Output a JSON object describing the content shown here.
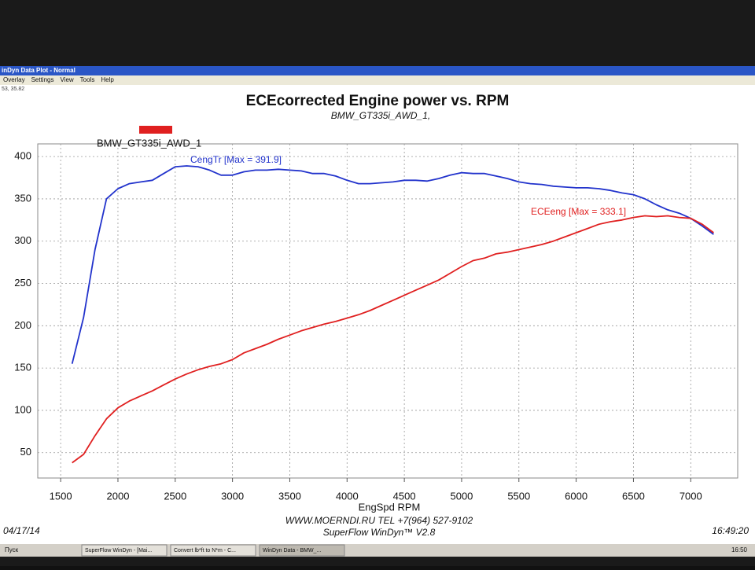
{
  "window": {
    "title": "inDyn Data Plot - Normal",
    "menu": [
      "Overlay",
      "Settings",
      "View",
      "Tools",
      "Help"
    ],
    "coords": "53, 35.82",
    "footer_line1": "WWW.MOERNDI.RU  TEL +7(964) 527-9102",
    "footer_line2": "SuperFlow WinDyn™ V2.8",
    "date": "04/17/14",
    "time": "16:49:20",
    "taskbar": {
      "start": "Пуск",
      "items": [
        "SuperFlow WinDyn - [Mai...",
        "Convert lb*ft to N*m - C...",
        "WinDyn Data - BMW_..."
      ],
      "clock": "16:50"
    }
  },
  "chart_data": {
    "type": "line",
    "title": "ECEcorrected Engine power vs. RPM",
    "subtitle": "BMW_GT335i_AWD_1,",
    "xlabel": "EngSpd  RPM",
    "legend_label": "BMW_GT335i_AWD_1",
    "annotations": [
      "CengTr [Max = 391.9]",
      "ECEeng [Max = 333.1]"
    ],
    "x": [
      1600,
      1700,
      1800,
      1900,
      2000,
      2100,
      2200,
      2300,
      2400,
      2500,
      2600,
      2700,
      2800,
      2900,
      3000,
      3100,
      3200,
      3300,
      3400,
      3500,
      3600,
      3700,
      3800,
      3900,
      4000,
      4100,
      4200,
      4300,
      4400,
      4500,
      4600,
      4700,
      4800,
      4900,
      5000,
      5100,
      5200,
      5300,
      5400,
      5500,
      5600,
      5700,
      5800,
      5900,
      6000,
      6100,
      6200,
      6300,
      6400,
      6500,
      6600,
      6700,
      6800,
      6900,
      7000,
      7100,
      7200
    ],
    "series": [
      {
        "color": "#2233cc",
        "values": [
          155,
          210,
          290,
          350,
          362,
          368,
          370,
          372,
          380,
          388,
          389,
          388,
          384,
          378,
          378,
          382,
          384,
          384,
          385,
          384,
          383,
          380,
          380,
          377,
          372,
          368,
          368,
          369,
          370,
          372,
          372,
          371,
          374,
          378,
          381,
          380,
          380,
          377,
          374,
          370,
          368,
          367,
          365,
          364,
          363,
          363,
          362,
          360,
          357,
          355,
          350,
          343,
          337,
          333,
          327,
          318,
          308
        ]
      },
      {
        "color": "#e02020",
        "values": [
          38,
          48,
          70,
          90,
          103,
          111,
          117,
          123,
          130,
          137,
          143,
          148,
          152,
          155,
          160,
          168,
          173,
          178,
          184,
          189,
          194,
          198,
          202,
          205,
          209,
          213,
          218,
          224,
          230,
          236,
          242,
          248,
          254,
          262,
          270,
          277,
          280,
          285,
          287,
          290,
          293,
          296,
          300,
          305,
          310,
          315,
          320,
          323,
          325,
          328,
          330,
          329,
          330,
          328,
          327,
          320,
          310
        ]
      }
    ],
    "xlim": [
      1300,
      7410
    ],
    "ylim": [
      20,
      415
    ],
    "xticks": [
      1500,
      2000,
      2500,
      3000,
      3500,
      4000,
      4500,
      5000,
      5500,
      6000,
      6500,
      7000
    ],
    "yticks": [
      50,
      100,
      150,
      200,
      250,
      300,
      350,
      400
    ],
    "grid": true
  }
}
